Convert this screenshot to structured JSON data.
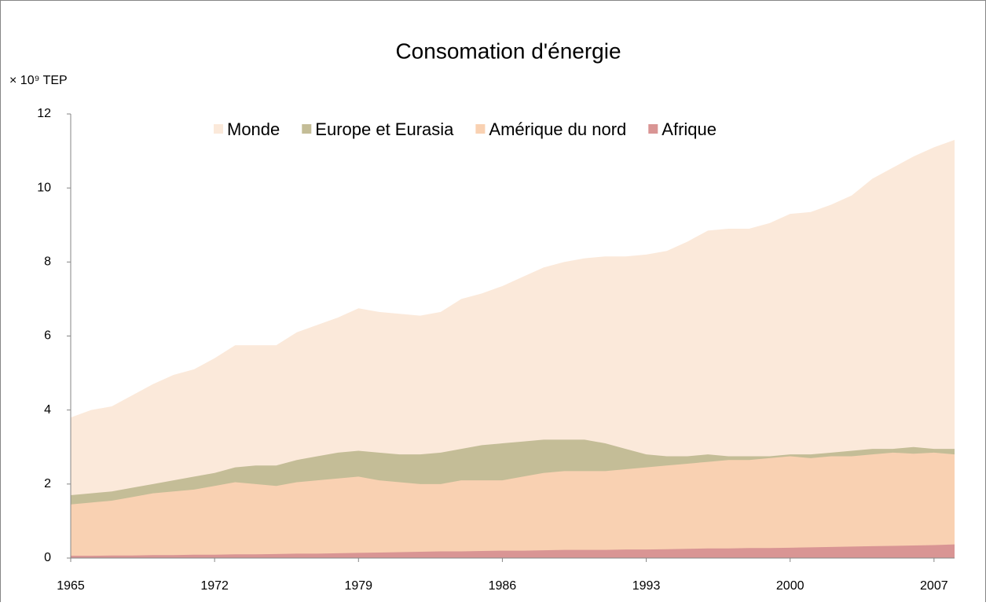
{
  "chart_data": {
    "type": "area",
    "title": "Consomation d'énergie",
    "y_label": "× 10⁹ TEP",
    "x": [
      1965,
      1966,
      1967,
      1968,
      1969,
      1970,
      1971,
      1972,
      1973,
      1974,
      1975,
      1976,
      1977,
      1978,
      1979,
      1980,
      1981,
      1982,
      1983,
      1984,
      1985,
      1986,
      1987,
      1988,
      1989,
      1990,
      1991,
      1992,
      1993,
      1994,
      1995,
      1996,
      1997,
      1998,
      1999,
      2000,
      2001,
      2002,
      2003,
      2004,
      2005,
      2006,
      2007,
      2008
    ],
    "xlim": [
      1965,
      2008
    ],
    "xticks": [
      1965,
      1972,
      1979,
      1986,
      1993,
      2000,
      2007
    ],
    "ylim": [
      0,
      12
    ],
    "yticks": [
      0,
      2,
      4,
      6,
      8,
      10,
      12
    ],
    "grid": false,
    "legend": "top",
    "series": [
      {
        "name": "Monde",
        "color": "#fbe9da",
        "values": [
          3.8,
          4.0,
          4.1,
          4.4,
          4.7,
          4.95,
          5.1,
          5.4,
          5.75,
          5.75,
          5.75,
          6.1,
          6.3,
          6.5,
          6.75,
          6.65,
          6.6,
          6.55,
          6.65,
          7.0,
          7.15,
          7.35,
          7.6,
          7.85,
          8.0,
          8.1,
          8.15,
          8.15,
          8.2,
          8.3,
          8.55,
          8.85,
          8.9,
          8.9,
          9.05,
          9.3,
          9.35,
          9.55,
          9.8,
          10.25,
          10.55,
          10.85,
          11.1,
          11.3
        ]
      },
      {
        "name": "Europe et Eurasia",
        "color": "#c4bd97",
        "values": [
          1.7,
          1.75,
          1.8,
          1.9,
          2.0,
          2.1,
          2.2,
          2.3,
          2.45,
          2.5,
          2.5,
          2.65,
          2.75,
          2.85,
          2.9,
          2.85,
          2.8,
          2.8,
          2.85,
          2.95,
          3.05,
          3.1,
          3.15,
          3.2,
          3.2,
          3.2,
          3.1,
          2.95,
          2.8,
          2.75,
          2.75,
          2.8,
          2.75,
          2.75,
          2.75,
          2.8,
          2.8,
          2.85,
          2.9,
          2.95,
          2.95,
          3.0,
          2.95,
          2.95
        ]
      },
      {
        "name": "Amérique du nord",
        "color": "#f9d1b2",
        "values": [
          1.45,
          1.5,
          1.55,
          1.65,
          1.75,
          1.8,
          1.85,
          1.95,
          2.05,
          2.0,
          1.95,
          2.05,
          2.1,
          2.15,
          2.2,
          2.1,
          2.05,
          2.0,
          2.0,
          2.1,
          2.1,
          2.1,
          2.2,
          2.3,
          2.35,
          2.35,
          2.35,
          2.4,
          2.45,
          2.5,
          2.55,
          2.6,
          2.65,
          2.65,
          2.7,
          2.75,
          2.7,
          2.75,
          2.75,
          2.8,
          2.85,
          2.82,
          2.85,
          2.8
        ]
      },
      {
        "name": "Afrique",
        "color": "#d99594",
        "values": [
          0.06,
          0.06,
          0.07,
          0.07,
          0.08,
          0.08,
          0.09,
          0.09,
          0.1,
          0.1,
          0.11,
          0.12,
          0.12,
          0.13,
          0.14,
          0.15,
          0.16,
          0.17,
          0.18,
          0.18,
          0.19,
          0.2,
          0.2,
          0.21,
          0.22,
          0.22,
          0.22,
          0.23,
          0.23,
          0.24,
          0.25,
          0.26,
          0.26,
          0.27,
          0.27,
          0.28,
          0.29,
          0.3,
          0.31,
          0.32,
          0.33,
          0.34,
          0.35,
          0.37
        ]
      }
    ]
  }
}
